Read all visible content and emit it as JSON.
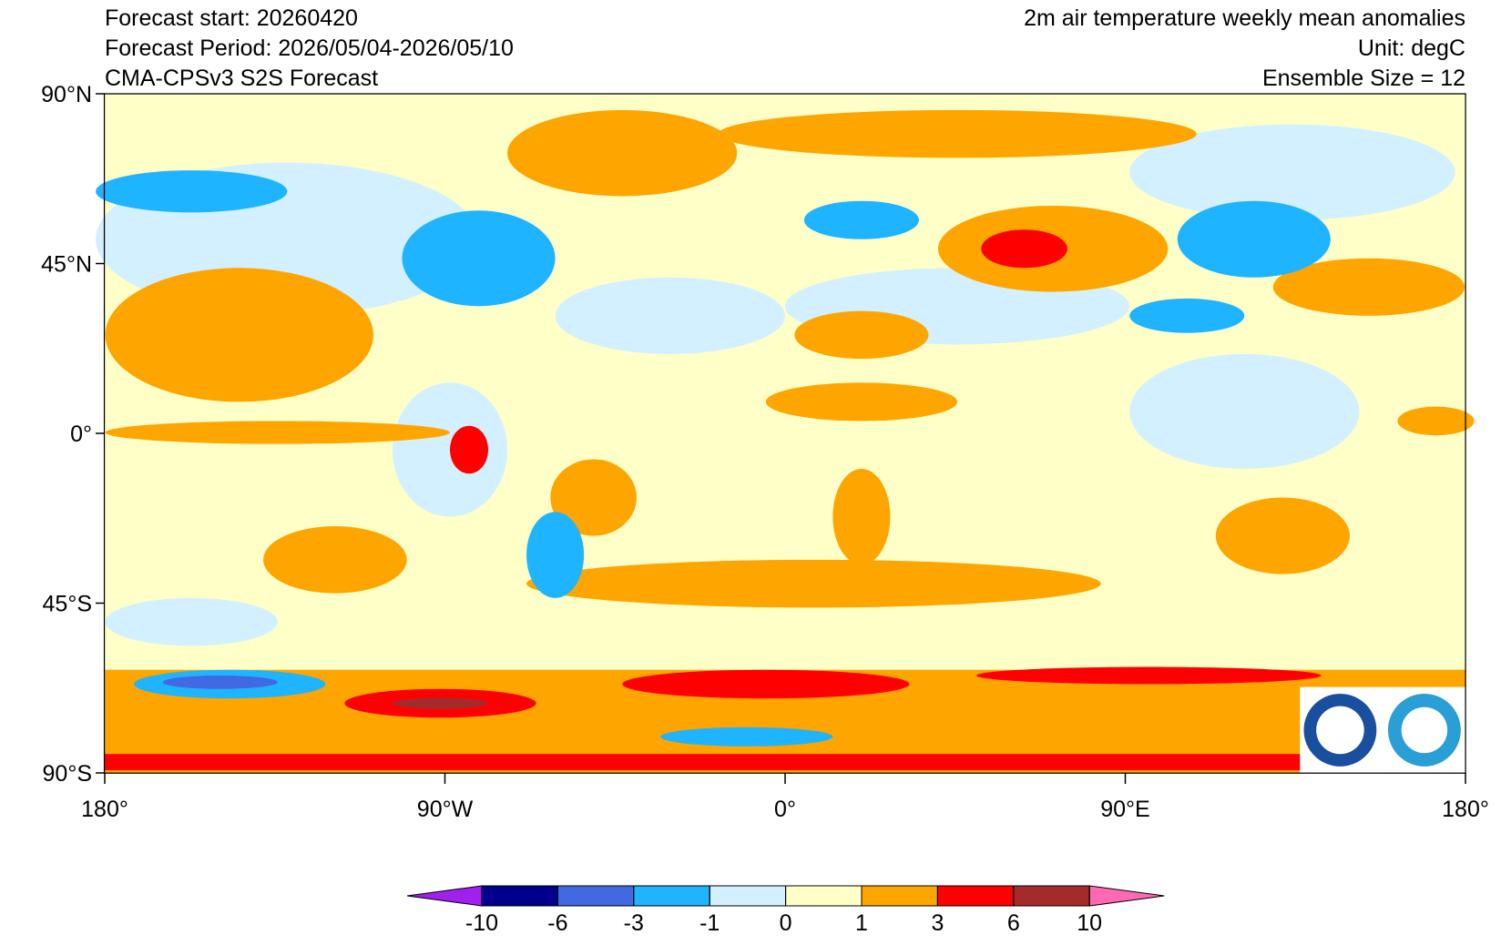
{
  "header": {
    "left": [
      "Forecast start: 20260420",
      "Forecast Period: 2026/05/04-2026/05/10",
      "CMA-CPSv3 S2S Forecast"
    ],
    "right": [
      "2m air temperature weekly mean anomalies",
      "Unit: degC",
      "Ensemble Size = 12"
    ]
  },
  "map": {
    "lat_ticks": [
      {
        "value": 90,
        "label": "90°N"
      },
      {
        "value": 45,
        "label": "45°N"
      },
      {
        "value": 0,
        "label": "0°"
      },
      {
        "value": -45,
        "label": "45°S"
      },
      {
        "value": -90,
        "label": "90°S"
      }
    ],
    "lon_ticks": [
      {
        "value": -180,
        "label": "180°"
      },
      {
        "value": -90,
        "label": "90°W"
      },
      {
        "value": 0,
        "label": "0°"
      },
      {
        "value": 90,
        "label": "90°E"
      },
      {
        "value": 180,
        "label": "180°"
      }
    ]
  },
  "colorbar": {
    "levels": [
      -10,
      -6,
      -3,
      -1,
      0,
      1,
      3,
      6,
      10
    ],
    "colors": [
      "#a020f0",
      "#00008c",
      "#4169e1",
      "#1eb4ff",
      "#d2f0ff",
      "#ffffc8",
      "#ffa500",
      "#ff0000",
      "#a52a2a",
      "#ff69b4"
    ]
  }
}
